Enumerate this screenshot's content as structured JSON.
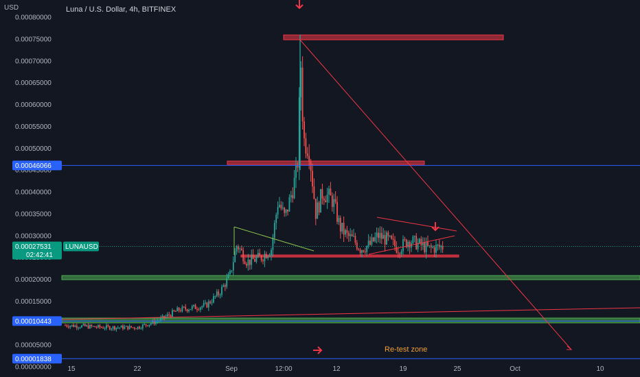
{
  "header": {
    "currency": "USD",
    "title": "Luna / U.S. Dollar, 4h, BITFINEX"
  },
  "chart_data": {
    "type": "candlestick",
    "y_ticks": [
      "0.00080000",
      "0.00075000",
      "0.00070000",
      "0.00065000",
      "0.00060000",
      "0.00055000",
      "0.00050000",
      "0.00045000",
      "0.00040000",
      "0.00035000",
      "0.00030000",
      "0.00025000",
      "0.00020000",
      "0.00015000",
      "0.00010000",
      "0.00005000",
      "0.00000000"
    ],
    "y_tick_values": [
      0.0008,
      0.00075,
      0.0007,
      0.00065,
      0.0006,
      0.00055,
      0.0005,
      0.00045,
      0.0004,
      0.00035,
      0.0003,
      0.00025,
      0.0002,
      0.00015,
      0.0001,
      5e-05,
      0
    ],
    "x_ticks": [
      "15",
      "22",
      "Sep",
      "12:00",
      "12",
      "19",
      "25",
      "Oct",
      "10"
    ],
    "price_labels": [
      {
        "text": "0.00046066",
        "value": 0.00046066,
        "color": "#2962ff"
      },
      {
        "text": "0.00010443",
        "value": 0.00010443,
        "color": "#2962ff"
      },
      {
        "text": "0.00001838",
        "value": 1.838e-05,
        "color": "#2962ff"
      }
    ],
    "current_price": {
      "text": "0.00027531",
      "value": 0.00027531,
      "countdown": "02:42:41",
      "symbol": "LUNAUSD",
      "color": "#089981"
    },
    "annotations": [
      {
        "text": "Re-test zone",
        "color": "#f0a030"
      }
    ],
    "colors": {
      "up": "#26a69a",
      "down": "#ef5350",
      "zone_red": "#f23645",
      "zone_green": "#4caf50",
      "hline": "#2962ff"
    }
  }
}
